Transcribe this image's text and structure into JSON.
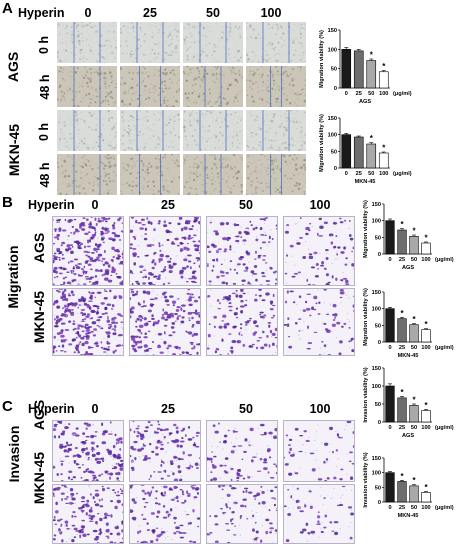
{
  "panel_labels": [
    "A",
    "B",
    "C"
  ],
  "hyperin_label": "Hyperin",
  "concentrations": [
    "0",
    "25",
    "50",
    "100"
  ],
  "cell_lines": [
    "AGS",
    "MKN-45"
  ],
  "time_points": [
    "0 h",
    "48 h"
  ],
  "section_labels": {
    "migration": "Migration",
    "invasion": "Invasion"
  },
  "chart_data": [
    {
      "type": "bar",
      "panel": "A",
      "categories": [
        "0",
        "25",
        "50",
        "100"
      ],
      "values": [
        100,
        96,
        71,
        42
      ],
      "errors": [
        5,
        4,
        4,
        3
      ],
      "significance": [
        "",
        "",
        "*",
        "*"
      ],
      "ylabel": "Migration viability (%)",
      "xlabel": "(μg/ml)",
      "caption": "AGS",
      "ylim": [
        0,
        150
      ],
      "yticks": [
        "0",
        "50",
        "100",
        "150"
      ]
    },
    {
      "type": "bar",
      "panel": "A",
      "categories": [
        "0",
        "25",
        "50",
        "100"
      ],
      "values": [
        100,
        93,
        72,
        45
      ],
      "errors": [
        4,
        3,
        4,
        3
      ],
      "significance": [
        "",
        "",
        "*",
        "*"
      ],
      "ylabel": "Migration viability (%)",
      "xlabel": "(μg/ml)",
      "caption": "MKN-45",
      "ylim": [
        0,
        150
      ],
      "yticks": [
        "0",
        "50",
        "100",
        "150"
      ]
    },
    {
      "type": "bar",
      "panel": "B",
      "categories": [
        "0",
        "25",
        "50",
        "100"
      ],
      "values": [
        100,
        72,
        53,
        33
      ],
      "errors": [
        5,
        4,
        4,
        3
      ],
      "significance": [
        "",
        "*",
        "*",
        "*"
      ],
      "ylabel": "Migration viability (%)",
      "xlabel": "(μg/ml)",
      "caption": "AGS",
      "ylim": [
        0,
        150
      ],
      "yticks": [
        "0",
        "50",
        "100",
        "150"
      ]
    },
    {
      "type": "bar",
      "panel": "B",
      "categories": [
        "0",
        "25",
        "50",
        "100"
      ],
      "values": [
        100,
        70,
        52,
        37
      ],
      "errors": [
        4,
        4,
        3,
        3
      ],
      "significance": [
        "",
        "*",
        "*",
        "*"
      ],
      "ylabel": "Migration viability (%)",
      "xlabel": "(μg/ml)",
      "caption": "MKN-45",
      "ylim": [
        0,
        150
      ],
      "yticks": [
        "0",
        "50",
        "100",
        "150"
      ]
    },
    {
      "type": "bar",
      "panel": "C",
      "categories": [
        "0",
        "25",
        "50",
        "100"
      ],
      "values": [
        100,
        67,
        46,
        32
      ],
      "errors": [
        6,
        4,
        4,
        3
      ],
      "significance": [
        "",
        "*",
        "*",
        "*"
      ],
      "ylabel": "Invasion viability (%)",
      "xlabel": "(μg/ml)",
      "caption": "AGS",
      "ylim": [
        0,
        150
      ],
      "yticks": [
        "0",
        "50",
        "100",
        "150"
      ]
    },
    {
      "type": "bar",
      "panel": "C",
      "categories": [
        "0",
        "25",
        "50",
        "100"
      ],
      "values": [
        100,
        70,
        55,
        33
      ],
      "errors": [
        4,
        4,
        4,
        3
      ],
      "significance": [
        "",
        "*",
        "*",
        "*"
      ],
      "ylabel": "Invasion viability (%)",
      "xlabel": "(μg/ml)",
      "caption": "MKN-45",
      "ylim": [
        0,
        150
      ],
      "yticks": [
        "0",
        "50",
        "100",
        "150"
      ]
    }
  ],
  "colors": {
    "bar_fills": [
      "#1a1a1a",
      "#6e6e6e",
      "#a9a9a9",
      "#ffffff"
    ],
    "stain": "#5a2e9c",
    "wound": "#d9dcd9"
  }
}
